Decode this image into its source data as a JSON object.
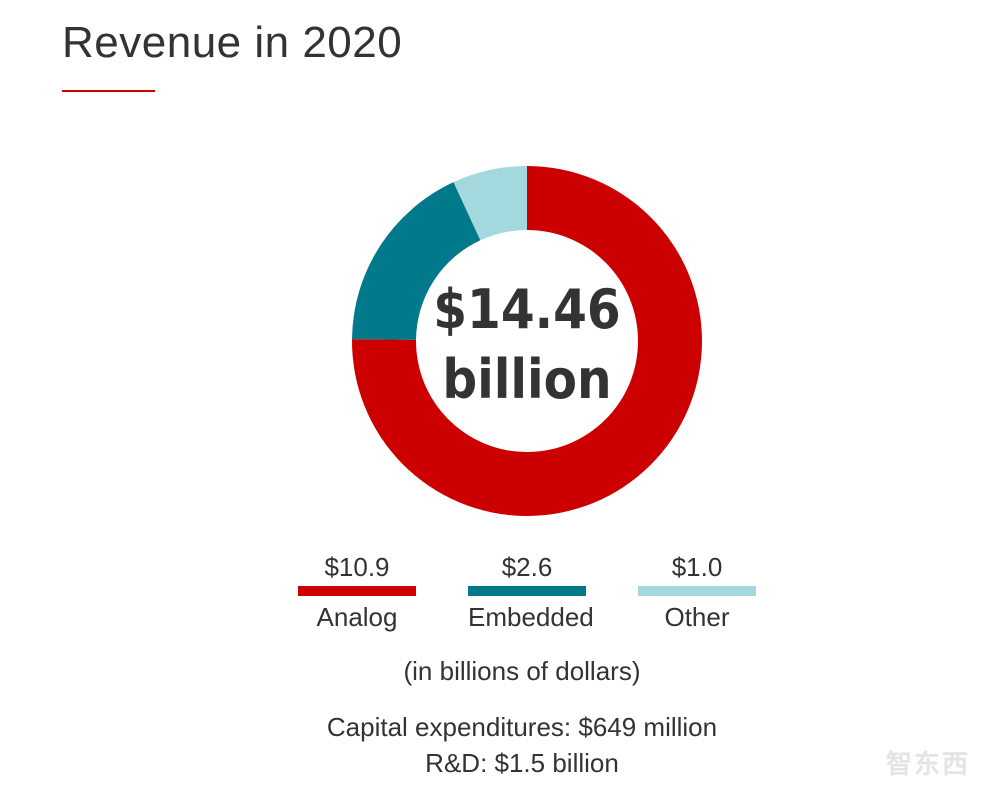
{
  "chart_data": {
    "type": "pie",
    "style": "donut",
    "title": "Revenue in 2020",
    "center_label": {
      "value": "$14.46",
      "unit": "billion"
    },
    "units": "billions of dollars",
    "slices": [
      {
        "name": "Analog",
        "value": 10.9,
        "label": "$10.9",
        "color": "#cc0000"
      },
      {
        "name": "Embedded",
        "value": 2.6,
        "label": "$2.6",
        "color": "#007a8a"
      },
      {
        "name": "Other",
        "value": 1.0,
        "label": "$1.0",
        "color": "#a3d8df"
      }
    ],
    "note": "(in billions of dollars)",
    "footer": [
      "Capital expenditures: $649 million",
      "R&D: $1.5 billion"
    ]
  },
  "colors": {
    "accent": "#cc0000",
    "text": "#333333"
  },
  "watermark": "智东西"
}
